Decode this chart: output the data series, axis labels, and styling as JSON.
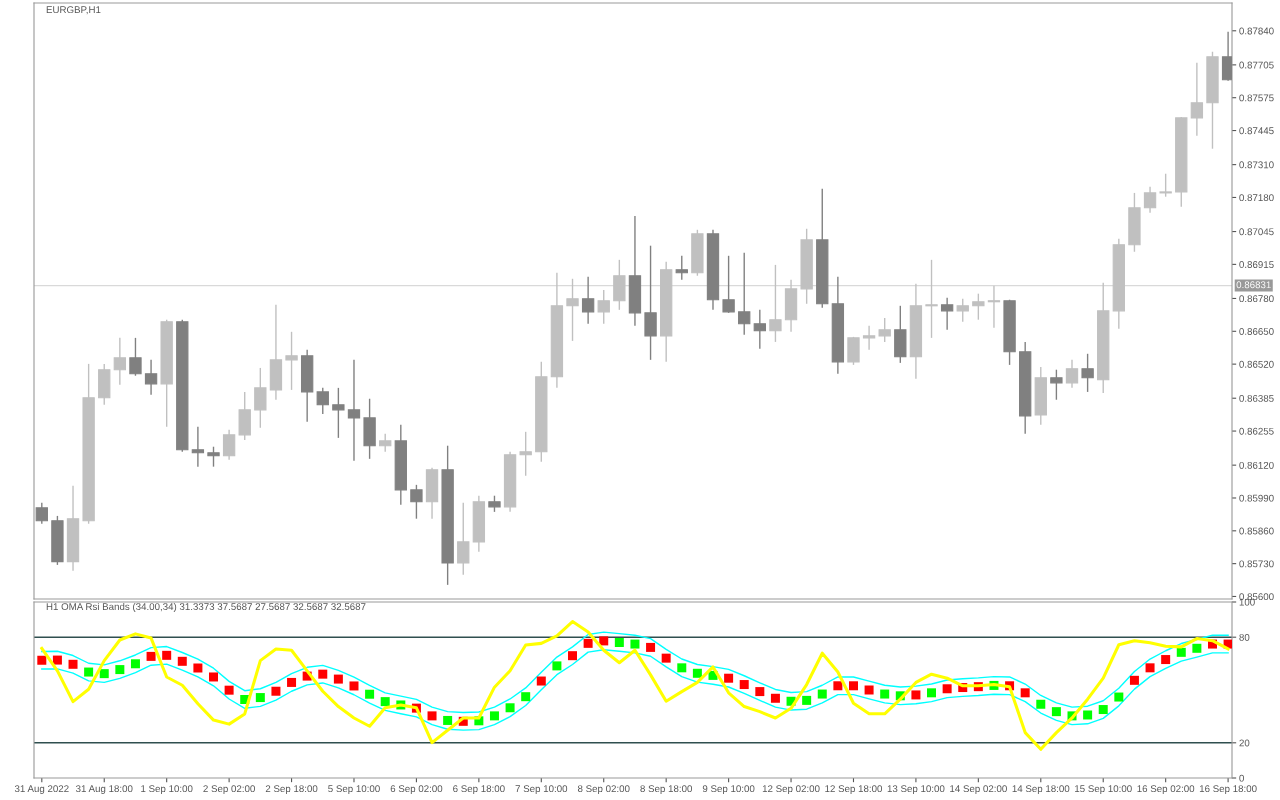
{
  "chart_data": [
    {
      "type": "candlestick",
      "title": "EURGBP,H1",
      "categories": [
        null,
        null,
        null,
        null,
        null,
        null,
        null,
        null,
        null,
        null,
        null,
        null,
        null,
        null,
        null,
        null,
        null,
        null,
        null,
        null,
        null,
        null,
        null,
        null,
        null,
        null,
        null,
        null,
        null,
        null,
        null,
        null,
        null,
        null,
        null,
        null,
        null,
        null,
        null,
        null,
        null,
        null,
        null,
        null,
        null,
        null,
        null,
        null,
        null,
        null,
        null,
        null,
        null,
        null,
        null,
        null,
        null,
        null,
        null,
        null,
        null,
        null,
        null,
        null,
        null,
        null,
        null,
        null,
        null,
        null,
        null,
        null,
        null,
        null,
        null,
        null,
        null
      ],
      "ohlc": [
        [
          0.85951,
          0.85971,
          0.85888,
          0.859
        ],
        [
          0.859,
          0.85919,
          0.85725,
          0.85738
        ],
        [
          0.85738,
          0.86038,
          0.85702,
          0.85908
        ],
        [
          0.859,
          0.86521,
          0.85888,
          0.86387
        ],
        [
          0.86387,
          0.86521,
          0.86359,
          0.86498
        ],
        [
          0.86498,
          0.86624,
          0.86438,
          0.86545
        ],
        [
          0.86545,
          0.86624,
          0.86474,
          0.86482
        ],
        [
          0.86482,
          0.86537,
          0.86399,
          0.86442
        ],
        [
          0.86442,
          0.86696,
          0.86272,
          0.86688
        ],
        [
          0.86688,
          0.86696,
          0.86173,
          0.86181
        ],
        [
          0.86181,
          0.86272,
          0.86114,
          0.86169
        ],
        [
          0.86169,
          0.86193,
          0.86114,
          0.86157
        ],
        [
          0.86157,
          0.8626,
          0.86141,
          0.8624
        ],
        [
          0.8624,
          0.8641,
          0.8622,
          0.86339
        ],
        [
          0.86339,
          0.86505,
          0.86268,
          0.86426
        ],
        [
          0.86418,
          0.86755,
          0.86379,
          0.86537
        ],
        [
          0.86537,
          0.86648,
          0.86418,
          0.86553
        ],
        [
          0.86553,
          0.86577,
          0.86292,
          0.8641
        ],
        [
          0.8641,
          0.86426,
          0.86323,
          0.86359
        ],
        [
          0.86359,
          0.86426,
          0.86228,
          0.86339
        ],
        [
          0.86339,
          0.86537,
          0.86137,
          0.86307
        ],
        [
          0.86307,
          0.86383,
          0.86145,
          0.86197
        ],
        [
          0.86197,
          0.86244,
          0.86173,
          0.86216
        ],
        [
          0.86216,
          0.8628,
          0.85963,
          0.86022
        ],
        [
          0.86022,
          0.86042,
          0.85908,
          0.85975
        ],
        [
          0.85975,
          0.8611,
          0.85908,
          0.86102
        ],
        [
          0.86102,
          0.86197,
          0.85646,
          0.85733
        ],
        [
          0.85733,
          0.85971,
          0.85686,
          0.85816
        ],
        [
          0.85816,
          0.85999,
          0.85777,
          0.85975
        ],
        [
          0.85975,
          0.85999,
          0.85935,
          0.85955
        ],
        [
          0.85955,
          0.86173,
          0.85935,
          0.86161
        ],
        [
          0.86161,
          0.86252,
          0.86078,
          0.86173
        ],
        [
          0.86173,
          0.86529,
          0.86133,
          0.8647
        ],
        [
          0.8647,
          0.86882,
          0.86426,
          0.86751
        ],
        [
          0.86751,
          0.86858,
          0.86612,
          0.86779
        ],
        [
          0.86779,
          0.86866,
          0.8668,
          0.86727
        ],
        [
          0.86727,
          0.86814,
          0.8668,
          0.86771
        ],
        [
          0.86771,
          0.86933,
          0.86735,
          0.8687
        ],
        [
          0.8687,
          0.87107,
          0.86672,
          0.86723
        ],
        [
          0.86723,
          0.86989,
          0.86537,
          0.86632
        ],
        [
          0.86632,
          0.86925,
          0.86529,
          0.86894
        ],
        [
          0.86894,
          0.86949,
          0.86854,
          0.86882
        ],
        [
          0.86882,
          0.87052,
          0.8687,
          0.87036
        ],
        [
          0.87036,
          0.87052,
          0.86735,
          0.86775
        ],
        [
          0.86775,
          0.86949,
          0.86723,
          0.86727
        ],
        [
          0.86727,
          0.86961,
          0.86636,
          0.8668
        ],
        [
          0.8668,
          0.86735,
          0.86581,
          0.86652
        ],
        [
          0.86652,
          0.86913,
          0.86608,
          0.86696
        ],
        [
          0.86696,
          0.86854,
          0.86648,
          0.86818
        ],
        [
          0.86818,
          0.87056,
          0.86759,
          0.87012
        ],
        [
          0.87012,
          0.87214,
          0.86743,
          0.86759
        ],
        [
          0.86759,
          0.86866,
          0.86482,
          0.86529
        ],
        [
          0.86529,
          0.86628,
          0.86517,
          0.86624
        ],
        [
          0.86624,
          0.86672,
          0.86577,
          0.86632
        ],
        [
          0.86632,
          0.86703,
          0.86608,
          0.86656
        ],
        [
          0.86656,
          0.86751,
          0.86525,
          0.86549
        ],
        [
          0.86549,
          0.86838,
          0.86462,
          0.86751
        ],
        [
          0.86751,
          0.86933,
          0.86624,
          0.86755
        ],
        [
          0.86755,
          0.86783,
          0.86656,
          0.86731
        ],
        [
          0.86731,
          0.86779,
          0.86688,
          0.86751
        ],
        [
          0.86751,
          0.86799,
          0.86696,
          0.86767
        ],
        [
          0.86767,
          0.8683,
          0.86664,
          0.86771
        ],
        [
          0.86771,
          0.86775,
          0.86517,
          0.86569
        ],
        [
          0.86569,
          0.86608,
          0.86244,
          0.86315
        ],
        [
          0.86319,
          0.86509,
          0.8628,
          0.86466
        ],
        [
          0.86466,
          0.86498,
          0.86379,
          0.86446
        ],
        [
          0.86446,
          0.86537,
          0.86426,
          0.86502
        ],
        [
          0.86502,
          0.86561,
          0.8641,
          0.86466
        ],
        [
          0.86458,
          0.86842,
          0.86406,
          0.86731
        ],
        [
          0.86731,
          0.87016,
          0.8666,
          0.86993
        ],
        [
          0.86993,
          0.87198,
          0.86965,
          0.87139
        ],
        [
          0.87139,
          0.87222,
          0.87119,
          0.87198
        ],
        [
          0.87198,
          0.87274,
          0.87183,
          0.87202
        ],
        [
          0.87202,
          0.87499,
          0.87143,
          0.87495
        ],
        [
          0.87495,
          0.87713,
          0.87424,
          0.87555
        ],
        [
          0.87555,
          0.87757,
          0.87373,
          0.87737
        ],
        [
          0.87737,
          0.87836,
          0.87642,
          0.87646
        ]
      ],
      "colors": [
        "#808080",
        "#808080",
        "#c0c0c0",
        "#c0c0c0",
        "#c0c0c0",
        "#c0c0c0",
        "#808080",
        "#808080",
        "#c0c0c0",
        "#808080",
        "#808080",
        "#808080",
        "#c0c0c0",
        "#c0c0c0",
        "#c0c0c0",
        "#c0c0c0",
        "#c0c0c0",
        "#808080",
        "#808080",
        "#808080",
        "#808080",
        "#808080",
        "#c0c0c0",
        "#808080",
        "#808080",
        "#c0c0c0",
        "#808080",
        "#c0c0c0",
        "#c0c0c0",
        "#808080",
        "#c0c0c0",
        "#c0c0c0",
        "#c0c0c0",
        "#c0c0c0",
        "#c0c0c0",
        "#808080",
        "#c0c0c0",
        "#c0c0c0",
        "#808080",
        "#808080",
        "#c0c0c0",
        "#808080",
        "#c0c0c0",
        "#808080",
        "#808080",
        "#808080",
        "#808080",
        "#c0c0c0",
        "#c0c0c0",
        "#c0c0c0",
        "#808080",
        "#808080",
        "#c0c0c0",
        "#c0c0c0",
        "#c0c0c0",
        "#808080",
        "#c0c0c0",
        "#c0c0c0",
        "#808080",
        "#c0c0c0",
        "#c0c0c0",
        "#c0c0c0",
        "#808080",
        "#808080",
        "#c0c0c0",
        "#808080",
        "#c0c0c0",
        "#808080",
        "#c0c0c0",
        "#c0c0c0",
        "#c0c0c0",
        "#c0c0c0",
        "#c0c0c0",
        "#c0c0c0",
        "#c0c0c0",
        "#c0c0c0",
        "#808080"
      ],
      "ylim": [
        0.8559,
        0.8795
      ],
      "yticks": [
        {
          "value": 0.856,
          "label": "0.85600"
        },
        {
          "value": 0.8573,
          "label": "0.85730"
        },
        {
          "value": 0.8586,
          "label": "0.85860"
        },
        {
          "value": 0.8599,
          "label": "0.85990"
        },
        {
          "value": 0.8612,
          "label": "0.86120"
        },
        0.86255,
        0.86385,
        {
          "value": 0.8652,
          "label": "0.86520"
        },
        {
          "value": 0.8665,
          "label": "0.86650"
        },
        {
          "value": 0.8678,
          "label": "0.86780"
        },
        0.86915,
        0.87045,
        {
          "value": 0.8718,
          "label": "0.87180"
        },
        {
          "value": 0.8731,
          "label": "0.87310"
        },
        0.87445,
        0.87575,
        0.87705,
        {
          "value": 0.8784,
          "label": "0.87840"
        }
      ],
      "ref_lines": [
        {
          "axis": "y",
          "value": 0.86831,
          "label": "0.86831",
          "color": "#d9d9d9"
        }
      ],
      "tick_labels": "y",
      "grid": false
    },
    {
      "type": "line",
      "title": "H1 OMA Rsi Bands (34.00,34) 31.3373 37.5687 27.5687 32.5687 32.5687",
      "categories": [
        "31 Aug 2022",
        null,
        null,
        null,
        "31 Aug 18:00",
        null,
        null,
        null,
        "1 Sep 10:00",
        null,
        null,
        null,
        "2 Sep 02:00",
        null,
        null,
        null,
        "2 Sep 18:00",
        null,
        null,
        null,
        "5 Sep 10:00",
        null,
        null,
        null,
        "6 Sep 02:00",
        null,
        null,
        null,
        "6 Sep 18:00",
        null,
        null,
        null,
        "7 Sep 10:00",
        null,
        null,
        null,
        "8 Sep 02:00",
        null,
        null,
        null,
        "8 Sep 18:00",
        null,
        null,
        null,
        "9 Sep 10:00",
        null,
        null,
        null,
        "12 Sep 02:00",
        null,
        null,
        null,
        "12 Sep 18:00",
        null,
        null,
        null,
        "13 Sep 10:00",
        null,
        null,
        null,
        "14 Sep 02:00",
        null,
        null,
        null,
        "14 Sep 18:00",
        null,
        null,
        null,
        "15 Sep 10:00",
        null,
        null,
        null,
        "16 Sep 02:00",
        null,
        null,
        null,
        "16 Sep 18:00"
      ],
      "series": [
        {
          "color": "#ffff00",
          "values": [
            73.7,
            60.9,
            43.4,
            50.4,
            66.7,
            78.4,
            81.9,
            79.5,
            57.4,
            52.7,
            42.2,
            32.9,
            30.6,
            36.4,
            66.7,
            73.3,
            72.6,
            60.9,
            49.3,
            40.6,
            34.1,
            29.4,
            39.9,
            41.5,
            39.9,
            20.1,
            27.1,
            34.1,
            34.1,
            51.6,
            60.9,
            75.6,
            76.5,
            80.7,
            88.9,
            83.0,
            72.6,
            65.5,
            72.6,
            58.6,
            43.6,
            49.1,
            54.3,
            63.1,
            48.4,
            40.6,
            37.7,
            34.1,
            39.6,
            53.1,
            70.9,
            60.2,
            42.5,
            36.5,
            36.5,
            44.8,
            54.3,
            59.0,
            56.7,
            52.4,
            52.4,
            53.1,
            51.9,
            25.8,
            16.3,
            25.8,
            34.1,
            44.8,
            56.7,
            75.7,
            78.0,
            76.8,
            74.9,
            74.5,
            79.2,
            78.0,
            73.3
          ]
        },
        {
          "color": "#00ffff",
          "values": [
            71.9,
            72.0,
            69.6,
            65.2,
            64.3,
            66.6,
            69.9,
            74.1,
            74.7,
            71.3,
            67.5,
            62.4,
            54.9,
            49.6,
            50.7,
            54.3,
            59.3,
            62.9,
            64.0,
            61.2,
            57.3,
            52.6,
            48.4,
            46.5,
            44.7,
            40.3,
            37.7,
            37.2,
            37.5,
            40.3,
            44.9,
            51.2,
            60.1,
            68.7,
            74.5,
            81.5,
            82.9,
            82.0,
            81.1,
            79.2,
            73.1,
            67.6,
            64.5,
            63.3,
            61.7,
            58.1,
            54.1,
            50.3,
            48.6,
            49.1,
            52.7,
            57.4,
            57.4,
            55.0,
            52.7,
            51.7,
            52.2,
            53.4,
            55.7,
            56.4,
            56.9,
            57.6,
            57.4,
            53.4,
            46.9,
            42.7,
            40.3,
            40.8,
            43.9,
            51.0,
            60.5,
            67.6,
            72.3,
            76.4,
            78.7,
            81.1,
            81.1
          ]
        },
        {
          "color": "#00ffff",
          "values": [
            61.9,
            62.0,
            59.6,
            55.2,
            54.3,
            56.6,
            59.9,
            64.1,
            64.7,
            61.3,
            57.5,
            52.4,
            44.9,
            39.6,
            40.7,
            44.3,
            49.3,
            52.9,
            54.0,
            51.2,
            47.3,
            42.6,
            38.4,
            36.5,
            34.7,
            30.3,
            27.7,
            27.2,
            27.5,
            30.3,
            34.9,
            41.2,
            50.1,
            58.7,
            64.5,
            71.5,
            72.9,
            72.0,
            71.1,
            69.2,
            63.1,
            57.6,
            54.5,
            53.3,
            51.7,
            48.1,
            44.1,
            40.3,
            38.6,
            39.1,
            42.7,
            47.4,
            47.4,
            45.0,
            42.7,
            41.7,
            42.2,
            43.4,
            45.7,
            46.4,
            46.9,
            47.6,
            47.4,
            43.4,
            36.9,
            32.7,
            30.3,
            30.8,
            33.9,
            41.0,
            50.5,
            57.6,
            62.3,
            66.4,
            68.7,
            71.1,
            71.1
          ]
        },
        {
          "type": "scatter",
          "marker": "square",
          "color": "#ff0000",
          "values": [
            66.9,
            67.0,
            64.6,
            null,
            null,
            null,
            null,
            69.1,
            69.7,
            66.3,
            62.5,
            57.4,
            49.9,
            null,
            null,
            49.3,
            54.3,
            57.9,
            59.0,
            56.2,
            52.3,
            null,
            null,
            null,
            39.7,
            35.3,
            null,
            32.2,
            null,
            null,
            null,
            null,
            55.1,
            null,
            69.5,
            76.5,
            77.9,
            null,
            null,
            74.2,
            68.1,
            null,
            null,
            null,
            56.7,
            53.1,
            49.1,
            45.3,
            null,
            null,
            null,
            52.4,
            52.4,
            50.0,
            null,
            null,
            47.2,
            null,
            50.7,
            51.4,
            51.9,
            null,
            52.4,
            48.4,
            null,
            null,
            null,
            null,
            null,
            null,
            55.5,
            62.6,
            67.3,
            null,
            null,
            76.1,
            76.1
          ]
        },
        {
          "type": "scatter",
          "marker": "square",
          "color": "#00ff00",
          "values": [
            null,
            null,
            null,
            60.2,
            59.3,
            61.6,
            64.9,
            null,
            null,
            null,
            null,
            null,
            null,
            44.6,
            45.7,
            null,
            null,
            null,
            null,
            null,
            null,
            47.6,
            43.4,
            41.5,
            null,
            null,
            32.7,
            null,
            32.5,
            35.3,
            39.9,
            46.2,
            null,
            63.7,
            null,
            null,
            null,
            77.0,
            76.1,
            null,
            null,
            62.6,
            59.5,
            58.3,
            null,
            null,
            null,
            null,
            43.6,
            44.1,
            47.7,
            null,
            null,
            null,
            47.7,
            46.7,
            null,
            48.4,
            null,
            null,
            null,
            52.6,
            null,
            null,
            41.9,
            37.7,
            35.3,
            35.8,
            38.9,
            46.0,
            null,
            null,
            null,
            71.4,
            73.7,
            null,
            null
          ]
        }
      ],
      "ylim": [
        0,
        100
      ],
      "yticks": [
        0,
        20,
        80,
        100
      ],
      "ref_lines": [
        {
          "axis": "y",
          "value": 20,
          "color": "#2f4f4f"
        },
        {
          "axis": "y",
          "value": 80,
          "color": "#2f4f4f"
        }
      ],
      "grid": false
    }
  ]
}
